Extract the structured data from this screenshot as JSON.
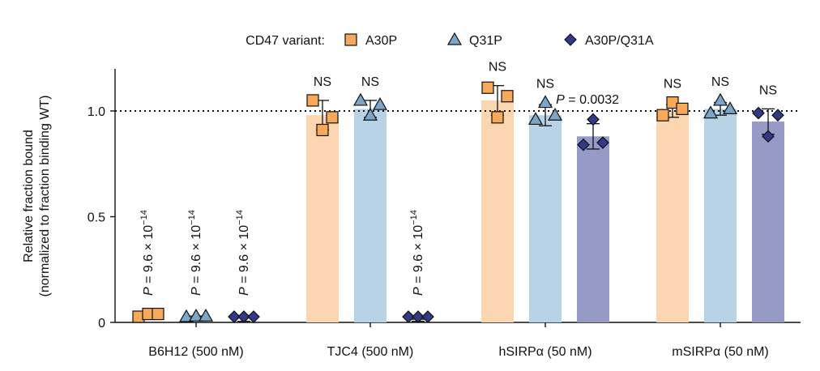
{
  "chart_data": {
    "type": "bar",
    "title": "",
    "xlabel": "",
    "ylabel_lines": [
      "Relative fraction bound",
      "(normalized to fraction binding WT)"
    ],
    "ylim": [
      0,
      1.2
    ],
    "yticks": [
      {
        "value": 0,
        "label": "0"
      },
      {
        "value": 0.5,
        "label": "0.5"
      },
      {
        "value": 1.0,
        "label": "1.0"
      }
    ],
    "reference_line": 1.0,
    "legend": {
      "title": "CD47 variant:",
      "position": "top",
      "entries": [
        {
          "name": "A30P",
          "marker": "square"
        },
        {
          "name": "Q31P",
          "marker": "triangle"
        },
        {
          "name": "A30P/Q31A",
          "marker": "diamond"
        }
      ]
    },
    "colors": {
      "A30P_fill": "#f8a85a",
      "A30P_bar": "#fbd6b0",
      "Q31P_fill": "#7ba6c9",
      "Q31P_bar": "#b8d3e6",
      "A30P/Q31A_fill": "#333a85",
      "A30P/Q31A_bar": "#959bc6"
    },
    "categories": [
      "B6H12 (500 nM)",
      "TJC4 (500 nM)",
      "hSIRPα (50 nM)",
      "mSIRPα (50 nM)"
    ],
    "series": [
      {
        "name": "A30P",
        "values": [
          0.03,
          0.98,
          1.05,
          1.0
        ],
        "points": [
          [
            0.02,
            0.04,
            0.04
          ],
          [
            1.05,
            0.91,
            0.97
          ],
          [
            1.11,
            0.97,
            1.07
          ],
          [
            0.98,
            1.04,
            1.01
          ]
        ],
        "error": [
          0.01,
          0.07,
          0.07,
          0.03
        ],
        "show_bar": [
          false,
          true,
          true,
          true
        ],
        "annotation": [
          "P = 9.6 × 10−14",
          "NS",
          "NS",
          "NS"
        ]
      },
      {
        "name": "Q31P",
        "values": [
          0.02,
          1.01,
          0.98,
          1.01
        ],
        "points": [
          [
            0.0,
            0.03,
            0.03
          ],
          [
            1.05,
            0.98,
            1.03
          ],
          [
            0.96,
            1.04,
            0.98
          ],
          [
            0.99,
            1.05,
            1.01
          ]
        ],
        "error": [
          0.01,
          0.04,
          0.05,
          0.03
        ],
        "show_bar": [
          false,
          true,
          true,
          true
        ],
        "annotation": [
          "P = 9.6 × 10−14",
          "NS",
          "NS",
          "NS"
        ]
      },
      {
        "name": "A30P/Q31A",
        "values": [
          0.015,
          0.01,
          0.88,
          0.95
        ],
        "points": [
          [
            0.0,
            0.02,
            0.025
          ],
          [
            0.01,
            0.01,
            0.01
          ],
          [
            0.84,
            0.96,
            0.85
          ],
          [
            0.99,
            0.88,
            0.98
          ]
        ],
        "error": [
          0.01,
          0.005,
          0.06,
          0.06
        ],
        "show_bar": [
          false,
          false,
          true,
          true
        ],
        "annotation": [
          "P = 9.6 × 10−14",
          "P = 9.6 × 10−14",
          "P = 0.0032",
          "NS"
        ]
      }
    ]
  }
}
